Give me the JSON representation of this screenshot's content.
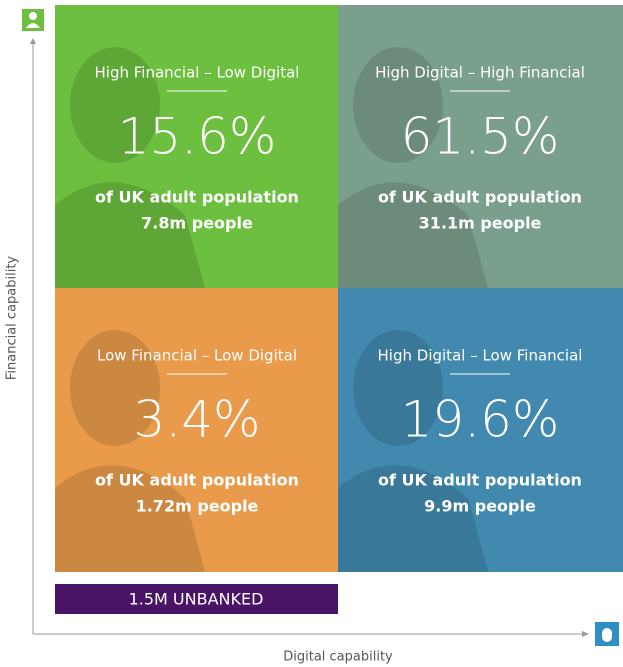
{
  "axes": {
    "y_label": "Financial capability",
    "x_label": "Digital capability"
  },
  "quadrants": [
    {
      "title": "High Financial – Low Digital",
      "percent": "15.6%",
      "population": "of UK adult population",
      "people": "7.8m people"
    },
    {
      "title": "High Digital – High Financial",
      "percent": "61.5%",
      "population": "of UK adult population",
      "people": "31.1m people"
    },
    {
      "title": "Low Financial – Low Digital",
      "percent": "3.4%",
      "population": "of UK adult population",
      "people": "1.72m people"
    },
    {
      "title": "High Digital – Low Financial",
      "percent": "19.6%",
      "population": "of UK adult population",
      "people": "9.9m people"
    }
  ],
  "unbanked": "1.5M UNBANKED"
}
